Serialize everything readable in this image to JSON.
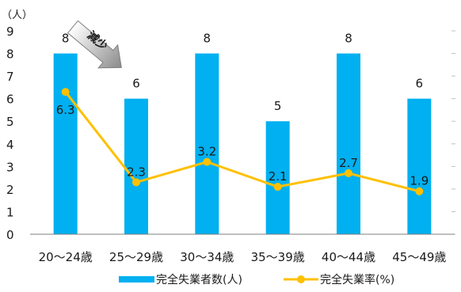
{
  "chart_data": {
    "type": "bar",
    "y_unit_label": "（人）",
    "ylim": [
      0,
      9
    ],
    "y_ticks": [
      "0",
      "1",
      "2",
      "3",
      "4",
      "5",
      "6",
      "7",
      "8",
      "9"
    ],
    "categories": [
      "20～24歳",
      "25～29歳",
      "30～34歳",
      "35～39歳",
      "40～44歳",
      "45～49歳"
    ],
    "series": [
      {
        "name": "完全失業者数(人)",
        "type": "bar",
        "axis": "left",
        "color": "#00B0F0",
        "values": [
          8,
          6,
          8,
          5,
          8,
          6
        ],
        "labels": [
          "8",
          "6",
          "8",
          "5",
          "8",
          "6"
        ]
      },
      {
        "name": "完全失業率(%)",
        "type": "line",
        "axis": "right",
        "color": "#FFC000",
        "values": [
          6.3,
          2.3,
          3.2,
          2.1,
          2.7,
          1.9
        ],
        "labels": [
          "6.3",
          "2.3",
          "3.2",
          "2.1",
          "2.7",
          "1.9"
        ]
      }
    ],
    "annotation": "減少",
    "legend_position": "bottom",
    "grid": false
  }
}
